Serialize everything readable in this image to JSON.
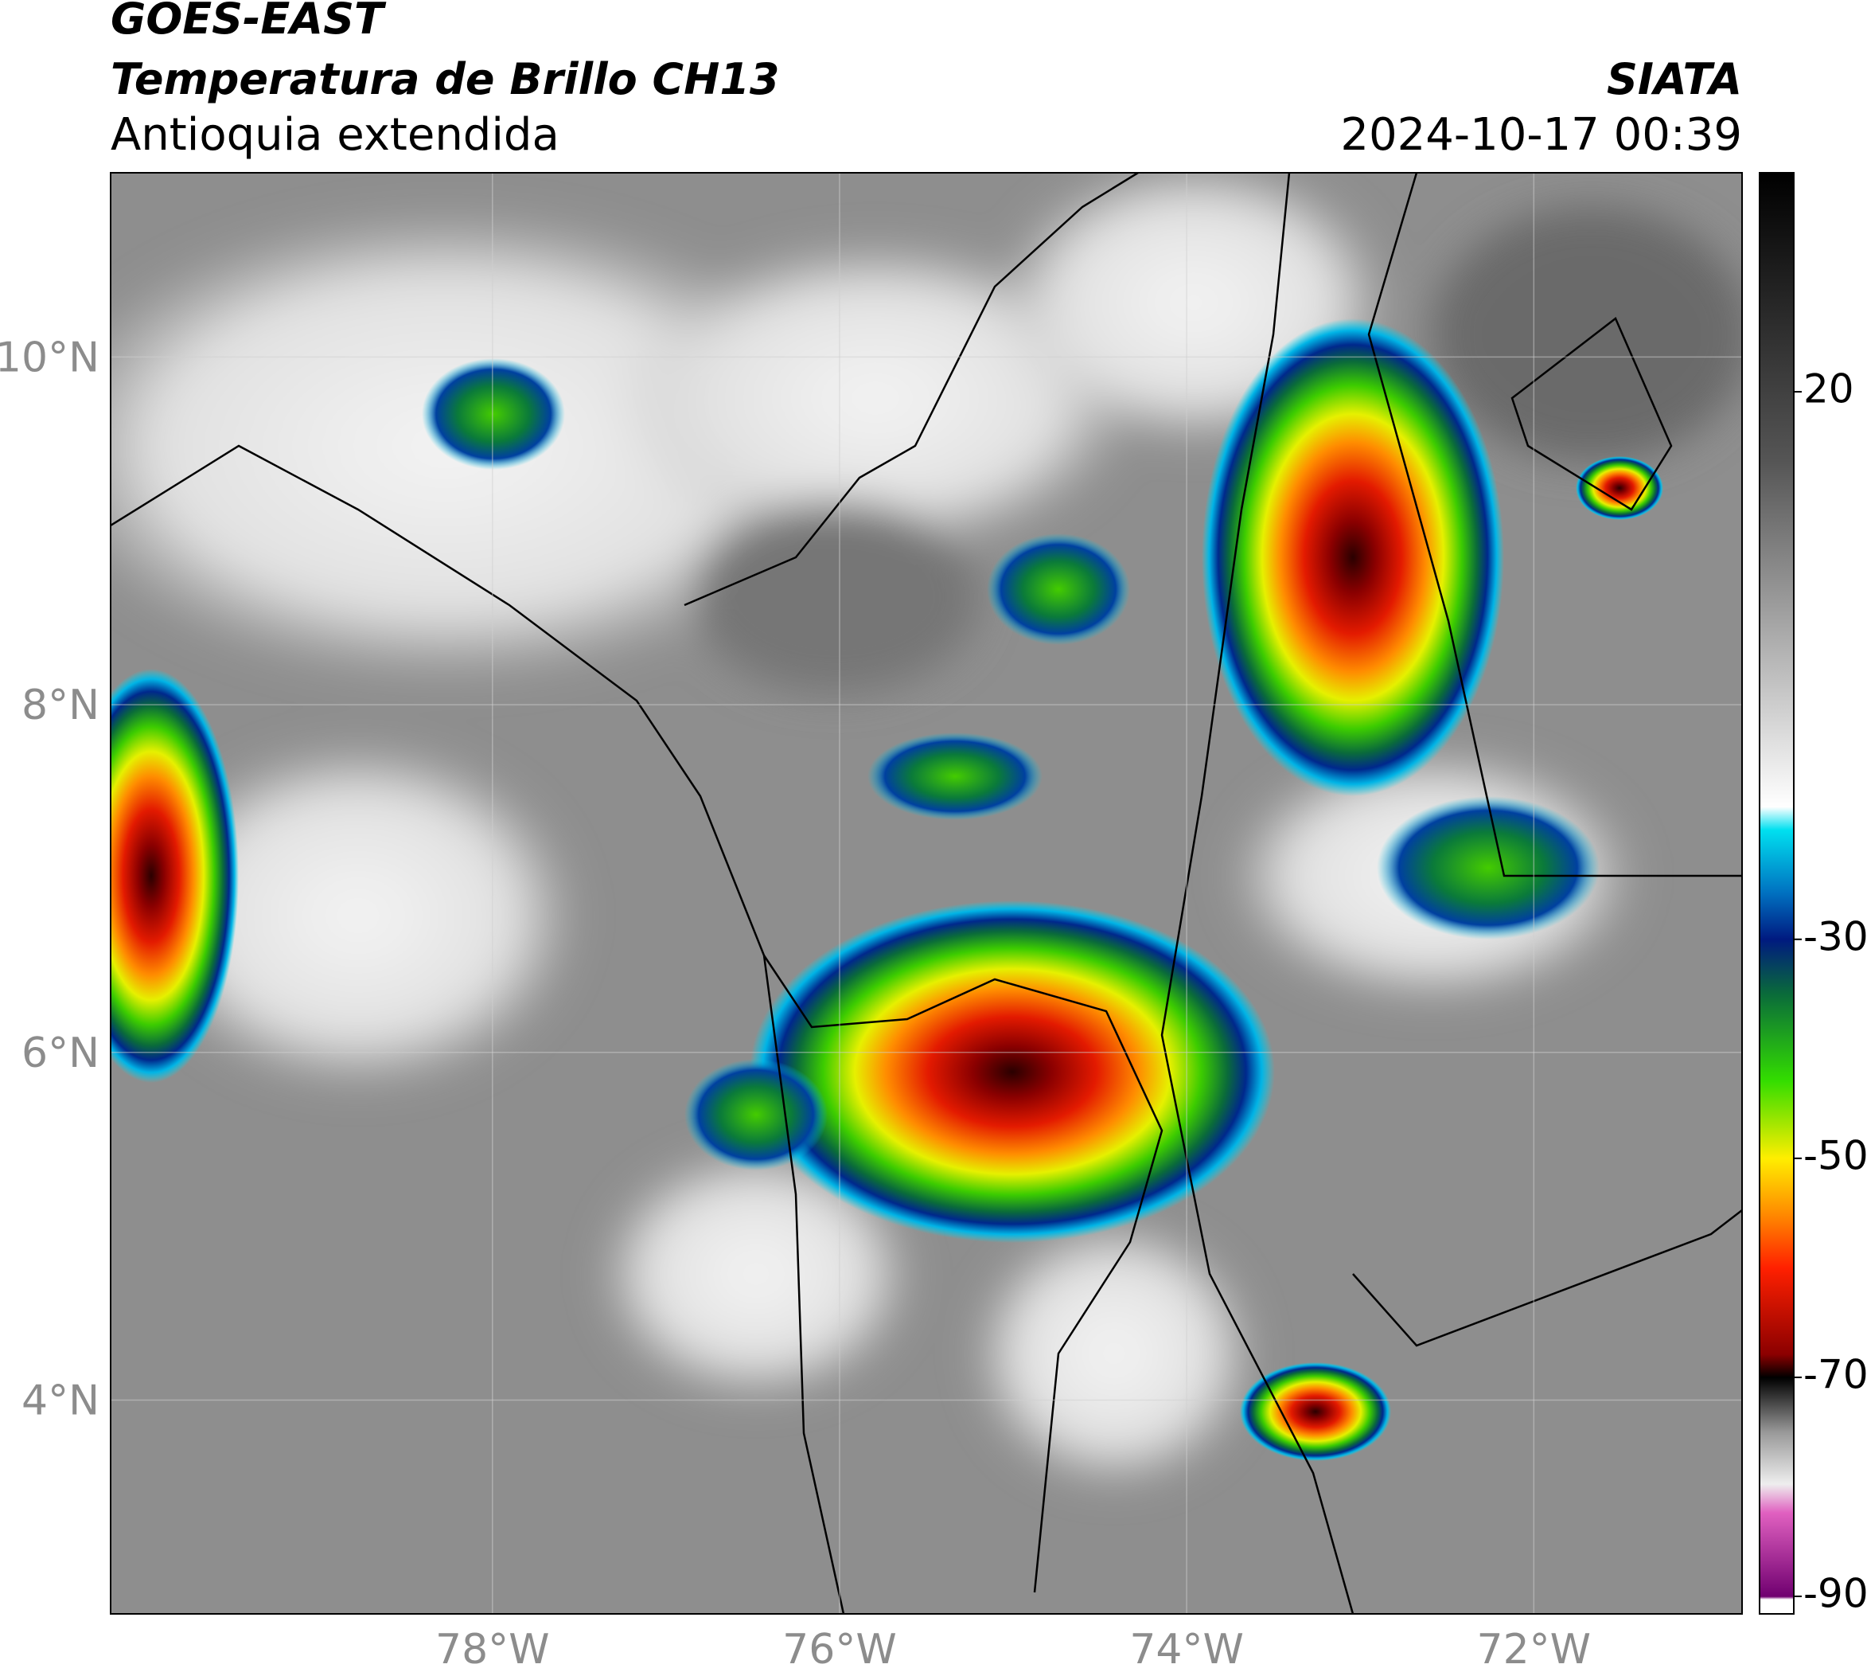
{
  "header": {
    "title": "GOES-EAST",
    "subtitle": "Temperatura de Brillo CH13",
    "region": "Antioquia extendida",
    "source": "SIATA",
    "datetime": "2024-10-17 00:39"
  },
  "map": {
    "xlim": [
      -80.2,
      -70.8
    ],
    "ylim": [
      2.77,
      11.06
    ],
    "xticks": [
      {
        "value": -78,
        "label": "78°W"
      },
      {
        "value": -76,
        "label": "76°W"
      },
      {
        "value": -74,
        "label": "74°W"
      },
      {
        "value": -72,
        "label": "72°W"
      }
    ],
    "yticks": [
      {
        "value": 4,
        "label": "4°N"
      },
      {
        "value": 6,
        "label": "6°N"
      },
      {
        "value": 8,
        "label": "8°N"
      },
      {
        "value": 10,
        "label": "10°N"
      }
    ],
    "grid": true
  },
  "colorbar": {
    "ylim": [
      -91.6,
      40
    ],
    "yticks": [
      -90,
      -70,
      -50,
      -30,
      20
    ]
  }
}
